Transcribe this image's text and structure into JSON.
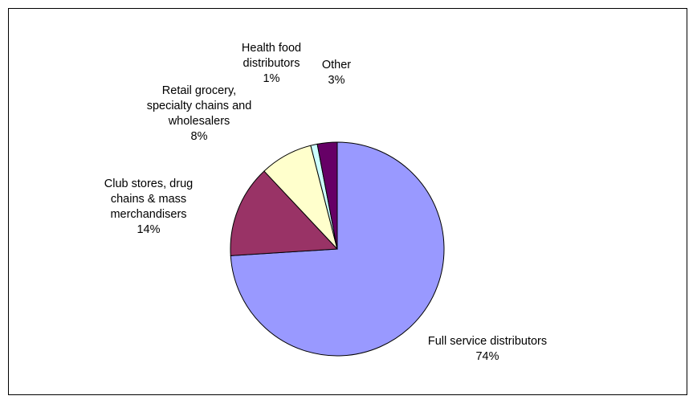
{
  "chart_data": {
    "type": "pie",
    "title": "",
    "legend": "none",
    "slices": [
      {
        "label_lines": [
          "Full service distributors"
        ],
        "percent_label": "74%",
        "value": 74,
        "color": "#9999FF"
      },
      {
        "label_lines": [
          "Club stores, drug",
          "chains & mass",
          "merchandisers"
        ],
        "percent_label": "14%",
        "value": 14,
        "color": "#993366"
      },
      {
        "label_lines": [
          "Retail grocery,",
          "specialty chains and",
          "wholesalers"
        ],
        "percent_label": "8%",
        "value": 8,
        "color": "#FFFFCC"
      },
      {
        "label_lines": [
          "Health food",
          "distributors"
        ],
        "percent_label": "1%",
        "value": 1,
        "color": "#CCFFFF"
      },
      {
        "label_lines": [
          "Other"
        ],
        "percent_label": "3%",
        "value": 3,
        "color": "#660066"
      }
    ]
  }
}
